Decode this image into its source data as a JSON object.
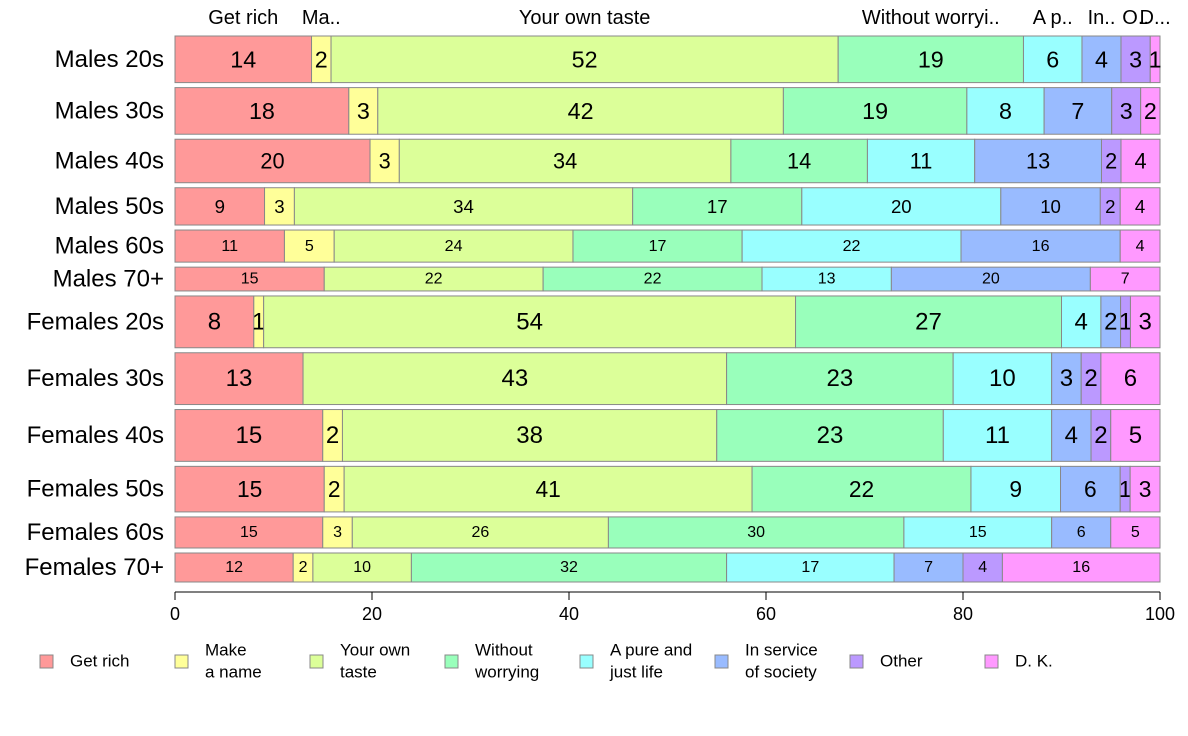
{
  "chart_data": {
    "type": "bar",
    "orientation": "horizontal",
    "stacked": true,
    "title": "",
    "xlabel": "",
    "ylabel": "",
    "xlim": [
      0,
      100
    ],
    "x_ticks": [
      "0",
      "20",
      "40",
      "60",
      "80",
      "100"
    ],
    "grid": false,
    "legend_position": "bottom",
    "bar_widths_vary": true,
    "top_labels": [
      "Get rich",
      "Ma..",
      "Your own taste",
      "Without worryi..",
      "A p..",
      "In..",
      "O..",
      "D..."
    ],
    "categories": [
      "Males 20s",
      "Males 30s",
      "Males 40s",
      "Males 50s",
      "Males 60s",
      "Males 70+",
      "Females 20s",
      "Females 30s",
      "Females 40s",
      "Females 50s",
      "Females 60s",
      "Females 70+"
    ],
    "series": [
      {
        "name": "Get rich",
        "legend_lines": [
          "Get rich"
        ],
        "color": "#ff9999",
        "values": [
          14,
          18,
          20,
          9,
          11,
          15,
          8,
          13,
          15,
          15,
          15,
          12
        ]
      },
      {
        "name": "Make a name",
        "legend_lines": [
          "Make",
          "a name"
        ],
        "color": "#ffff99",
        "values": [
          2,
          3,
          3,
          3,
          5,
          0,
          1,
          0,
          2,
          2,
          3,
          2
        ]
      },
      {
        "name": "Your own taste",
        "legend_lines": [
          "Your own",
          "taste"
        ],
        "color": "#dcff99",
        "values": [
          52,
          42,
          34,
          34,
          24,
          22,
          54,
          43,
          38,
          41,
          26,
          10
        ]
      },
      {
        "name": "Without worrying",
        "legend_lines": [
          "Without",
          "worrying"
        ],
        "color": "#99ffbb",
        "values": [
          19,
          19,
          14,
          17,
          17,
          22,
          27,
          23,
          23,
          22,
          30,
          32
        ]
      },
      {
        "name": "A pure and just life",
        "legend_lines": [
          "A pure and",
          "just life"
        ],
        "color": "#99ffff",
        "values": [
          6,
          8,
          11,
          20,
          22,
          13,
          4,
          10,
          11,
          9,
          15,
          17
        ]
      },
      {
        "name": "In service of society",
        "legend_lines": [
          "In service",
          "of society"
        ],
        "color": "#99bbff",
        "values": [
          4,
          7,
          13,
          10,
          16,
          20,
          2,
          3,
          4,
          6,
          6,
          7
        ]
      },
      {
        "name": "Other",
        "legend_lines": [
          "Other"
        ],
        "color": "#bb99ff",
        "values": [
          3,
          3,
          2,
          2,
          0,
          0,
          1,
          2,
          2,
          1,
          0,
          4
        ]
      },
      {
        "name": "D. K.",
        "legend_lines": [
          "D. K."
        ],
        "color": "#ff99ff",
        "values": [
          1,
          2,
          4,
          4,
          4,
          7,
          3,
          6,
          5,
          3,
          5,
          16
        ]
      }
    ],
    "bar_weights": [
      45,
      45,
      42,
      36,
      31,
      23,
      50,
      50,
      50,
      44,
      30,
      28
    ]
  }
}
